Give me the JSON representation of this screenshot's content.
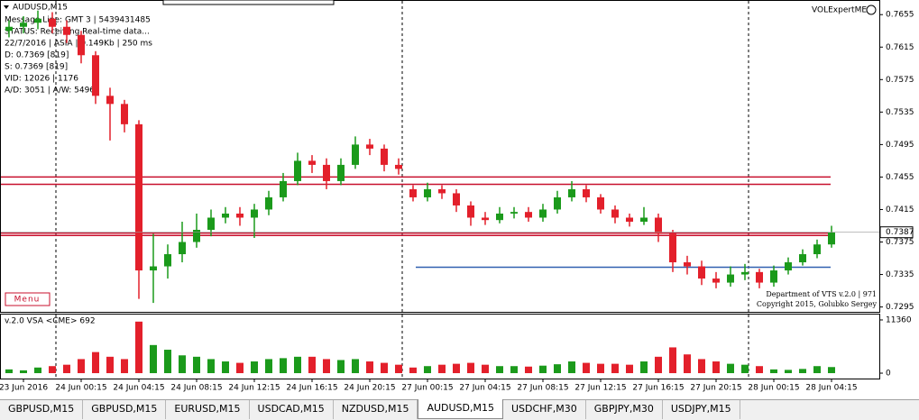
{
  "chart_data": [
    {
      "type": "candlestick",
      "title": "AUDUSD,M15",
      "open": [
        0.7635,
        0.764,
        0.7645,
        0.765,
        0.764,
        0.763,
        0.7605,
        0.7555,
        0.7545,
        0.752,
        0.734,
        0.7345,
        0.736,
        0.7375,
        0.739,
        0.7405,
        0.741,
        0.7405,
        0.7415,
        0.743,
        0.745,
        0.7475,
        0.747,
        0.745,
        0.747,
        0.7495,
        0.749,
        0.747,
        0.744,
        0.743,
        0.744,
        0.7435,
        0.742,
        0.7405,
        0.7402,
        0.741,
        0.7412,
        0.7405,
        0.7415,
        0.743,
        0.744,
        0.743,
        0.7415,
        0.7405,
        0.74,
        0.7405,
        0.7385,
        0.735,
        0.7345,
        0.733,
        0.7325,
        0.7335,
        0.7338,
        0.7325,
        0.734,
        0.735,
        0.736,
        0.7372
      ],
      "high": [
        0.7648,
        0.7653,
        0.766,
        0.7658,
        0.7648,
        0.7635,
        0.761,
        0.7565,
        0.755,
        0.7525,
        0.7385,
        0.7372,
        0.74,
        0.741,
        0.7415,
        0.7418,
        0.7418,
        0.7422,
        0.7438,
        0.746,
        0.7485,
        0.7482,
        0.7478,
        0.7478,
        0.7505,
        0.7502,
        0.7495,
        0.7478,
        0.7445,
        0.7448,
        0.7445,
        0.744,
        0.7425,
        0.7412,
        0.7418,
        0.7418,
        0.7418,
        0.7422,
        0.7438,
        0.745,
        0.7445,
        0.7434,
        0.742,
        0.741,
        0.7418,
        0.741,
        0.739,
        0.7358,
        0.7352,
        0.7338,
        0.7345,
        0.7348,
        0.7342,
        0.7346,
        0.7356,
        0.7366,
        0.7378,
        0.7395
      ],
      "low": [
        0.7627,
        0.7632,
        0.7637,
        0.7632,
        0.762,
        0.7595,
        0.7545,
        0.75,
        0.751,
        0.7305,
        0.73,
        0.733,
        0.735,
        0.7368,
        0.7382,
        0.7398,
        0.7395,
        0.738,
        0.7408,
        0.7425,
        0.7445,
        0.746,
        0.744,
        0.7445,
        0.7465,
        0.7482,
        0.7462,
        0.7458,
        0.7425,
        0.7425,
        0.7428,
        0.7412,
        0.7395,
        0.7396,
        0.7398,
        0.7404,
        0.74,
        0.74,
        0.741,
        0.7425,
        0.7424,
        0.741,
        0.7398,
        0.7394,
        0.7396,
        0.7375,
        0.7338,
        0.7335,
        0.7322,
        0.7318,
        0.732,
        0.7328,
        0.7318,
        0.732,
        0.7335,
        0.7346,
        0.7355,
        0.7368
      ],
      "close": [
        0.764,
        0.7645,
        0.765,
        0.764,
        0.763,
        0.7605,
        0.7555,
        0.7545,
        0.752,
        0.734,
        0.7345,
        0.736,
        0.7375,
        0.739,
        0.7405,
        0.741,
        0.7405,
        0.7415,
        0.743,
        0.745,
        0.7475,
        0.747,
        0.745,
        0.747,
        0.7495,
        0.749,
        0.747,
        0.7465,
        0.743,
        0.744,
        0.7435,
        0.742,
        0.7405,
        0.7402,
        0.741,
        0.7412,
        0.7405,
        0.7415,
        0.743,
        0.744,
        0.743,
        0.7415,
        0.7405,
        0.74,
        0.7405,
        0.7385,
        0.735,
        0.7345,
        0.733,
        0.7325,
        0.7335,
        0.7338,
        0.7325,
        0.734,
        0.735,
        0.736,
        0.7372,
        0.7387
      ],
      "up_color": "#1b9a1b",
      "down_color": "#e3202b",
      "ylim": [
        0.7289,
        0.7673
      ],
      "yticks": [
        0.7655,
        0.7615,
        0.7575,
        0.7535,
        0.7495,
        0.7455,
        0.7415,
        0.7375,
        0.7335,
        0.7295
      ],
      "levels": [
        {
          "value": 0.7455,
          "color": "#c8102e"
        },
        {
          "value": 0.7446,
          "color": "#c8102e"
        },
        {
          "value": 0.7386,
          "color": "#c8102e"
        },
        {
          "value": 0.7383,
          "color": "#c8102e"
        },
        {
          "value": 0.7344,
          "color": "#3060b0"
        }
      ],
      "time_labels": [
        "23 Jun 2016",
        "24 Jun 00:15",
        "24 Jun 04:15",
        "24 Jun 08:15",
        "24 Jun 12:15",
        "24 Jun 16:15",
        "24 Jun 20:15",
        "27 Jun 00:15",
        "27 Jun 04:15",
        "27 Jun 08:15",
        "27 Jun 12:15",
        "27 Jun 16:15",
        "27 Jun 20:15",
        "28 Jun 00:15",
        "28 Jun 04:15"
      ]
    },
    {
      "type": "bar",
      "title": "v.2.0 VSA <CME> 692",
      "values": [
        800,
        600,
        1200,
        1500,
        1800,
        3000,
        4500,
        3500,
        3000,
        11000,
        6000,
        5000,
        3800,
        3500,
        3000,
        2500,
        2200,
        2500,
        3000,
        3200,
        3500,
        3500,
        3000,
        2800,
        3000,
        2500,
        2200,
        1800,
        1200,
        1500,
        1800,
        2000,
        2200,
        1800,
        1500,
        1500,
        1400,
        1600,
        1900,
        2500,
        2200,
        2000,
        2000,
        1800,
        2500,
        3500,
        5500,
        4000,
        3000,
        2500,
        2000,
        1800,
        1500,
        800,
        700,
        900,
        1500,
        1300
      ],
      "ylim": [
        -1150,
        12700
      ],
      "yticks": [
        11360,
        0
      ]
    }
  ],
  "ui": {
    "info_lines": [
      "Message Line: GMT 3 | 5439431485",
      "STATUS:  Receiving Real-time data...",
      "22/7/2016 | ASIA | 0.149Kb | 250 ms",
      "D: 0.7369 [819]",
      "S: 0.7369 [819]",
      "VID: 12026 | 1176",
      "A/D: 3051 | A/W: 5496"
    ],
    "indicator": "VOLExpertME",
    "menu": "Menu",
    "copyright": [
      "Department of VTS v.2.0 | 971",
      "Copyright 2015, Golubko Sergey"
    ],
    "tabs": [
      "GBPUSD,M15",
      "GBPUSD,M15",
      "EURUSD,M15",
      "USDCAD,M15",
      "NZDUSD,M15",
      "AUDUSD,M15",
      "USDCHF,M30",
      "GBPJPY,M30",
      "USDJPY,M15"
    ],
    "active_tab": 5
  }
}
